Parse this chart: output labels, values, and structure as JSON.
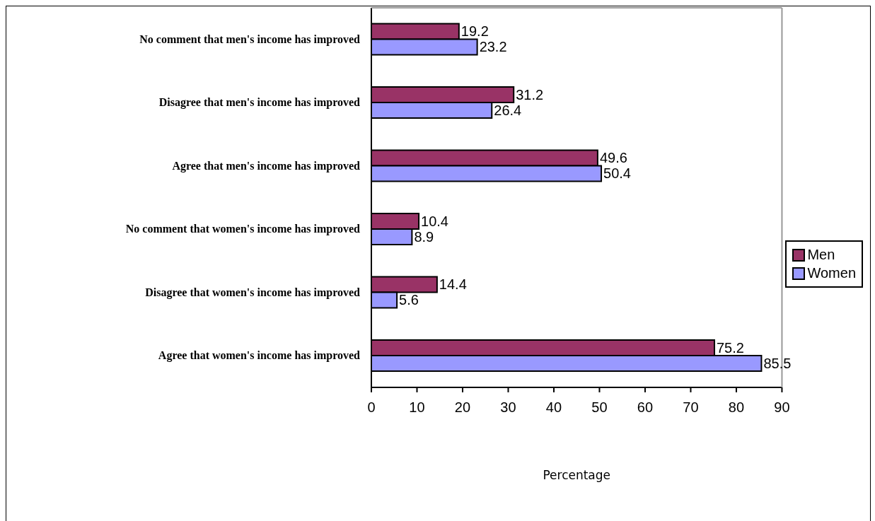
{
  "chart_data": {
    "type": "bar",
    "orientation": "horizontal",
    "xlabel": "Percentage",
    "categories": [
      "No comment that men's income has improved",
      "Disagree that men's income has improved",
      "Agree that men's income has improved",
      "No comment that women's income has improved",
      "Disagree that women's income has improved",
      "Agree that women's income has improved"
    ],
    "series": [
      {
        "name": "Men",
        "color": "#993366",
        "values": [
          19.2,
          31.2,
          49.6,
          10.4,
          14.4,
          75.2
        ]
      },
      {
        "name": "Women",
        "color": "#9999ff",
        "values": [
          23.2,
          26.4,
          50.4,
          8.9,
          5.6,
          85.5
        ]
      }
    ],
    "xlim": [
      0,
      90
    ],
    "xticks": [
      0,
      10,
      20,
      30,
      40,
      50,
      60,
      70,
      80,
      90
    ],
    "legend": "right",
    "data_labels": true
  }
}
